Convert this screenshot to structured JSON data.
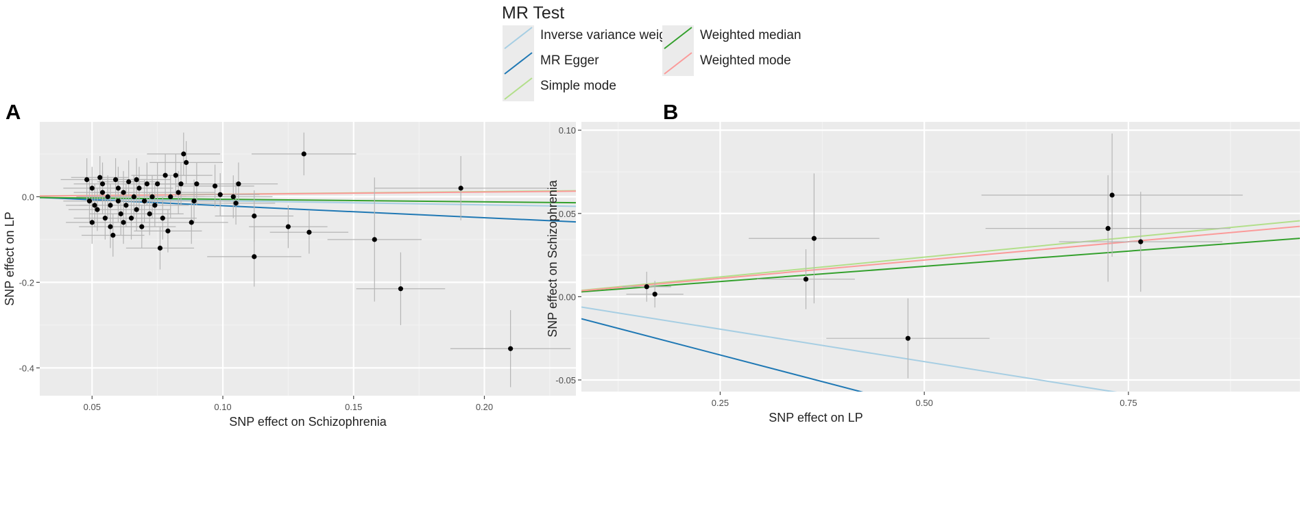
{
  "legend": {
    "title": "MR Test",
    "items": [
      {
        "label": "Inverse variance weighted",
        "color": "#a6cee3"
      },
      {
        "label": "MR Egger",
        "color": "#1f78b4"
      },
      {
        "label": "Simple mode",
        "color": "#b2df8a"
      },
      {
        "label": "Weighted median",
        "color": "#33a02c"
      },
      {
        "label": "Weighted mode",
        "color": "#fb9a99"
      }
    ]
  },
  "chart_data": [
    {
      "panel": "A",
      "type": "scatter",
      "xlabel": "SNP effect on Schizophrenia",
      "ylabel": "SNP effect on LP",
      "xlim": [
        0.03,
        0.235
      ],
      "ylim": [
        -0.465,
        0.175
      ],
      "xticks": [
        0.05,
        0.1,
        0.15,
        0.2
      ],
      "xtick_labels": [
        "0.05",
        "0.10",
        "0.15",
        "0.20"
      ],
      "yticks": [
        -0.4,
        -0.2,
        0.0
      ],
      "ytick_labels": [
        "-0.4",
        "-0.2",
        "0.0"
      ],
      "lines": [
        {
          "name": "Inverse variance weighted",
          "intercept": 0,
          "slope": -0.095
        },
        {
          "name": "MR Egger",
          "intercept": 0.007,
          "slope": -0.28
        },
        {
          "name": "Simple mode",
          "intercept": 0,
          "slope": 0.06
        },
        {
          "name": "Weighted median",
          "intercept": 0,
          "slope": -0.06
        },
        {
          "name": "Weighted mode",
          "intercept": 0,
          "slope": 0.055
        }
      ],
      "points": [
        {
          "x": 0.048,
          "y": 0.04,
          "xerr": 0.01,
          "yerr": 0.05
        },
        {
          "x": 0.05,
          "y": 0.02,
          "xerr": 0.011,
          "yerr": 0.05
        },
        {
          "x": 0.049,
          "y": -0.01,
          "xerr": 0.01,
          "yerr": 0.05
        },
        {
          "x": 0.051,
          "y": -0.02,
          "xerr": 0.011,
          "yerr": 0.05
        },
        {
          "x": 0.05,
          "y": -0.06,
          "xerr": 0.01,
          "yerr": 0.05
        },
        {
          "x": 0.053,
          "y": 0.045,
          "xerr": 0.011,
          "yerr": 0.05
        },
        {
          "x": 0.054,
          "y": 0.01,
          "xerr": 0.011,
          "yerr": 0.05
        },
        {
          "x": 0.052,
          "y": -0.03,
          "xerr": 0.011,
          "yerr": 0.05
        },
        {
          "x": 0.055,
          "y": -0.05,
          "xerr": 0.012,
          "yerr": 0.05
        },
        {
          "x": 0.054,
          "y": 0.03,
          "xerr": 0.011,
          "yerr": 0.05
        },
        {
          "x": 0.056,
          "y": 0.0,
          "xerr": 0.012,
          "yerr": 0.05
        },
        {
          "x": 0.057,
          "y": -0.02,
          "xerr": 0.012,
          "yerr": 0.05
        },
        {
          "x": 0.057,
          "y": -0.07,
          "xerr": 0.012,
          "yerr": 0.05
        },
        {
          "x": 0.058,
          "y": -0.09,
          "xerr": 0.012,
          "yerr": 0.05
        },
        {
          "x": 0.059,
          "y": 0.04,
          "xerr": 0.012,
          "yerr": 0.05
        },
        {
          "x": 0.06,
          "y": 0.02,
          "xerr": 0.012,
          "yerr": 0.05
        },
        {
          "x": 0.06,
          "y": -0.01,
          "xerr": 0.012,
          "yerr": 0.05
        },
        {
          "x": 0.061,
          "y": -0.04,
          "xerr": 0.012,
          "yerr": 0.05
        },
        {
          "x": 0.062,
          "y": -0.06,
          "xerr": 0.012,
          "yerr": 0.05
        },
        {
          "x": 0.062,
          "y": 0.01,
          "xerr": 0.012,
          "yerr": 0.05
        },
        {
          "x": 0.063,
          "y": -0.02,
          "xerr": 0.012,
          "yerr": 0.05
        },
        {
          "x": 0.064,
          "y": 0.035,
          "xerr": 0.012,
          "yerr": 0.05
        },
        {
          "x": 0.065,
          "y": -0.05,
          "xerr": 0.012,
          "yerr": 0.05
        },
        {
          "x": 0.066,
          "y": 0.0,
          "xerr": 0.013,
          "yerr": 0.05
        },
        {
          "x": 0.067,
          "y": 0.04,
          "xerr": 0.013,
          "yerr": 0.05
        },
        {
          "x": 0.067,
          "y": -0.03,
          "xerr": 0.013,
          "yerr": 0.05
        },
        {
          "x": 0.068,
          "y": 0.02,
          "xerr": 0.013,
          "yerr": 0.05
        },
        {
          "x": 0.069,
          "y": -0.07,
          "xerr": 0.013,
          "yerr": 0.05
        },
        {
          "x": 0.07,
          "y": -0.01,
          "xerr": 0.013,
          "yerr": 0.05
        },
        {
          "x": 0.071,
          "y": 0.03,
          "xerr": 0.013,
          "yerr": 0.05
        },
        {
          "x": 0.072,
          "y": -0.04,
          "xerr": 0.013,
          "yerr": 0.05
        },
        {
          "x": 0.073,
          "y": 0.0,
          "xerr": 0.013,
          "yerr": 0.05
        },
        {
          "x": 0.074,
          "y": -0.02,
          "xerr": 0.013,
          "yerr": 0.05
        },
        {
          "x": 0.075,
          "y": 0.03,
          "xerr": 0.013,
          "yerr": 0.05
        },
        {
          "x": 0.076,
          "y": -0.12,
          "xerr": 0.013,
          "yerr": 0.05
        },
        {
          "x": 0.077,
          "y": -0.05,
          "xerr": 0.013,
          "yerr": 0.05
        },
        {
          "x": 0.078,
          "y": 0.05,
          "xerr": 0.013,
          "yerr": 0.05
        },
        {
          "x": 0.079,
          "y": -0.08,
          "xerr": 0.013,
          "yerr": 0.05
        },
        {
          "x": 0.08,
          "y": 0.0,
          "xerr": 0.013,
          "yerr": 0.05
        },
        {
          "x": 0.082,
          "y": 0.05,
          "xerr": 0.014,
          "yerr": 0.05
        },
        {
          "x": 0.083,
          "y": 0.01,
          "xerr": 0.014,
          "yerr": 0.05
        },
        {
          "x": 0.084,
          "y": 0.03,
          "xerr": 0.014,
          "yerr": 0.05
        },
        {
          "x": 0.085,
          "y": 0.1,
          "xerr": 0.014,
          "yerr": 0.05
        },
        {
          "x": 0.086,
          "y": 0.08,
          "xerr": 0.014,
          "yerr": 0.05
        },
        {
          "x": 0.088,
          "y": -0.06,
          "xerr": 0.014,
          "yerr": 0.05
        },
        {
          "x": 0.089,
          "y": -0.01,
          "xerr": 0.014,
          "yerr": 0.05
        },
        {
          "x": 0.09,
          "y": 0.03,
          "xerr": 0.014,
          "yerr": 0.05
        },
        {
          "x": 0.097,
          "y": 0.025,
          "xerr": 0.015,
          "yerr": 0.05
        },
        {
          "x": 0.099,
          "y": 0.005,
          "xerr": 0.015,
          "yerr": 0.05
        },
        {
          "x": 0.104,
          "y": 0.0,
          "xerr": 0.015,
          "yerr": 0.05
        },
        {
          "x": 0.105,
          "y": -0.015,
          "xerr": 0.015,
          "yerr": 0.05
        },
        {
          "x": 0.106,
          "y": 0.03,
          "xerr": 0.015,
          "yerr": 0.05
        },
        {
          "x": 0.112,
          "y": -0.045,
          "xerr": 0.015,
          "yerr": 0.06
        },
        {
          "x": 0.112,
          "y": -0.14,
          "xerr": 0.018,
          "yerr": 0.07
        },
        {
          "x": 0.125,
          "y": -0.07,
          "xerr": 0.015,
          "yerr": 0.05
        },
        {
          "x": 0.131,
          "y": 0.1,
          "xerr": 0.02,
          "yerr": 0.05
        },
        {
          "x": 0.133,
          "y": -0.083,
          "xerr": 0.015,
          "yerr": 0.05
        },
        {
          "x": 0.158,
          "y": -0.1,
          "xerr": 0.018,
          "yerr": 0.145
        },
        {
          "x": 0.168,
          "y": -0.215,
          "xerr": 0.017,
          "yerr": 0.085
        },
        {
          "x": 0.191,
          "y": 0.02,
          "xerr": 0.033,
          "yerr": 0.075
        },
        {
          "x": 0.21,
          "y": -0.355,
          "xerr": 0.023,
          "yerr": 0.09
        }
      ]
    },
    {
      "panel": "B",
      "type": "scatter",
      "xlabel": "SNP effect on LP",
      "ylabel": "SNP effect on Schizophrenia",
      "xlim": [
        0.08,
        0.96
      ],
      "ylim": [
        -0.057,
        0.105
      ],
      "xticks": [
        0.25,
        0.5,
        0.75
      ],
      "xtick_labels": [
        "0.25",
        "0.50",
        "0.75"
      ],
      "yticks": [
        -0.05,
        0.0,
        0.05,
        0.1
      ],
      "ytick_labels": [
        "-0.05",
        "0.00",
        "0.05",
        "0.10"
      ],
      "lines": [
        {
          "name": "Inverse variance weighted",
          "intercept": 0.0,
          "slope": -0.078
        },
        {
          "name": "MR Egger",
          "intercept": -0.003,
          "slope": -0.128
        },
        {
          "name": "Simple mode",
          "intercept": 0.0,
          "slope": 0.0475
        },
        {
          "name": "Weighted median",
          "intercept": 0.0,
          "slope": 0.0365
        },
        {
          "name": "Weighted mode",
          "intercept": 0.0,
          "slope": 0.044
        }
      ],
      "points": [
        {
          "x": 0.16,
          "y": 0.006,
          "xerr": 0.03,
          "yerr": 0.009
        },
        {
          "x": 0.17,
          "y": 0.0015,
          "xerr": 0.035,
          "yerr": 0.008
        },
        {
          "x": 0.355,
          "y": 0.0105,
          "xerr": 0.06,
          "yerr": 0.018
        },
        {
          "x": 0.365,
          "y": 0.035,
          "xerr": 0.08,
          "yerr": 0.039
        },
        {
          "x": 0.48,
          "y": -0.025,
          "xerr": 0.1,
          "yerr": 0.024
        },
        {
          "x": 0.725,
          "y": 0.041,
          "xerr": 0.15,
          "yerr": 0.032
        },
        {
          "x": 0.73,
          "y": 0.061,
          "xerr": 0.16,
          "yerr": 0.037
        },
        {
          "x": 0.765,
          "y": 0.033,
          "xerr": 0.1,
          "yerr": 0.03
        }
      ]
    }
  ]
}
